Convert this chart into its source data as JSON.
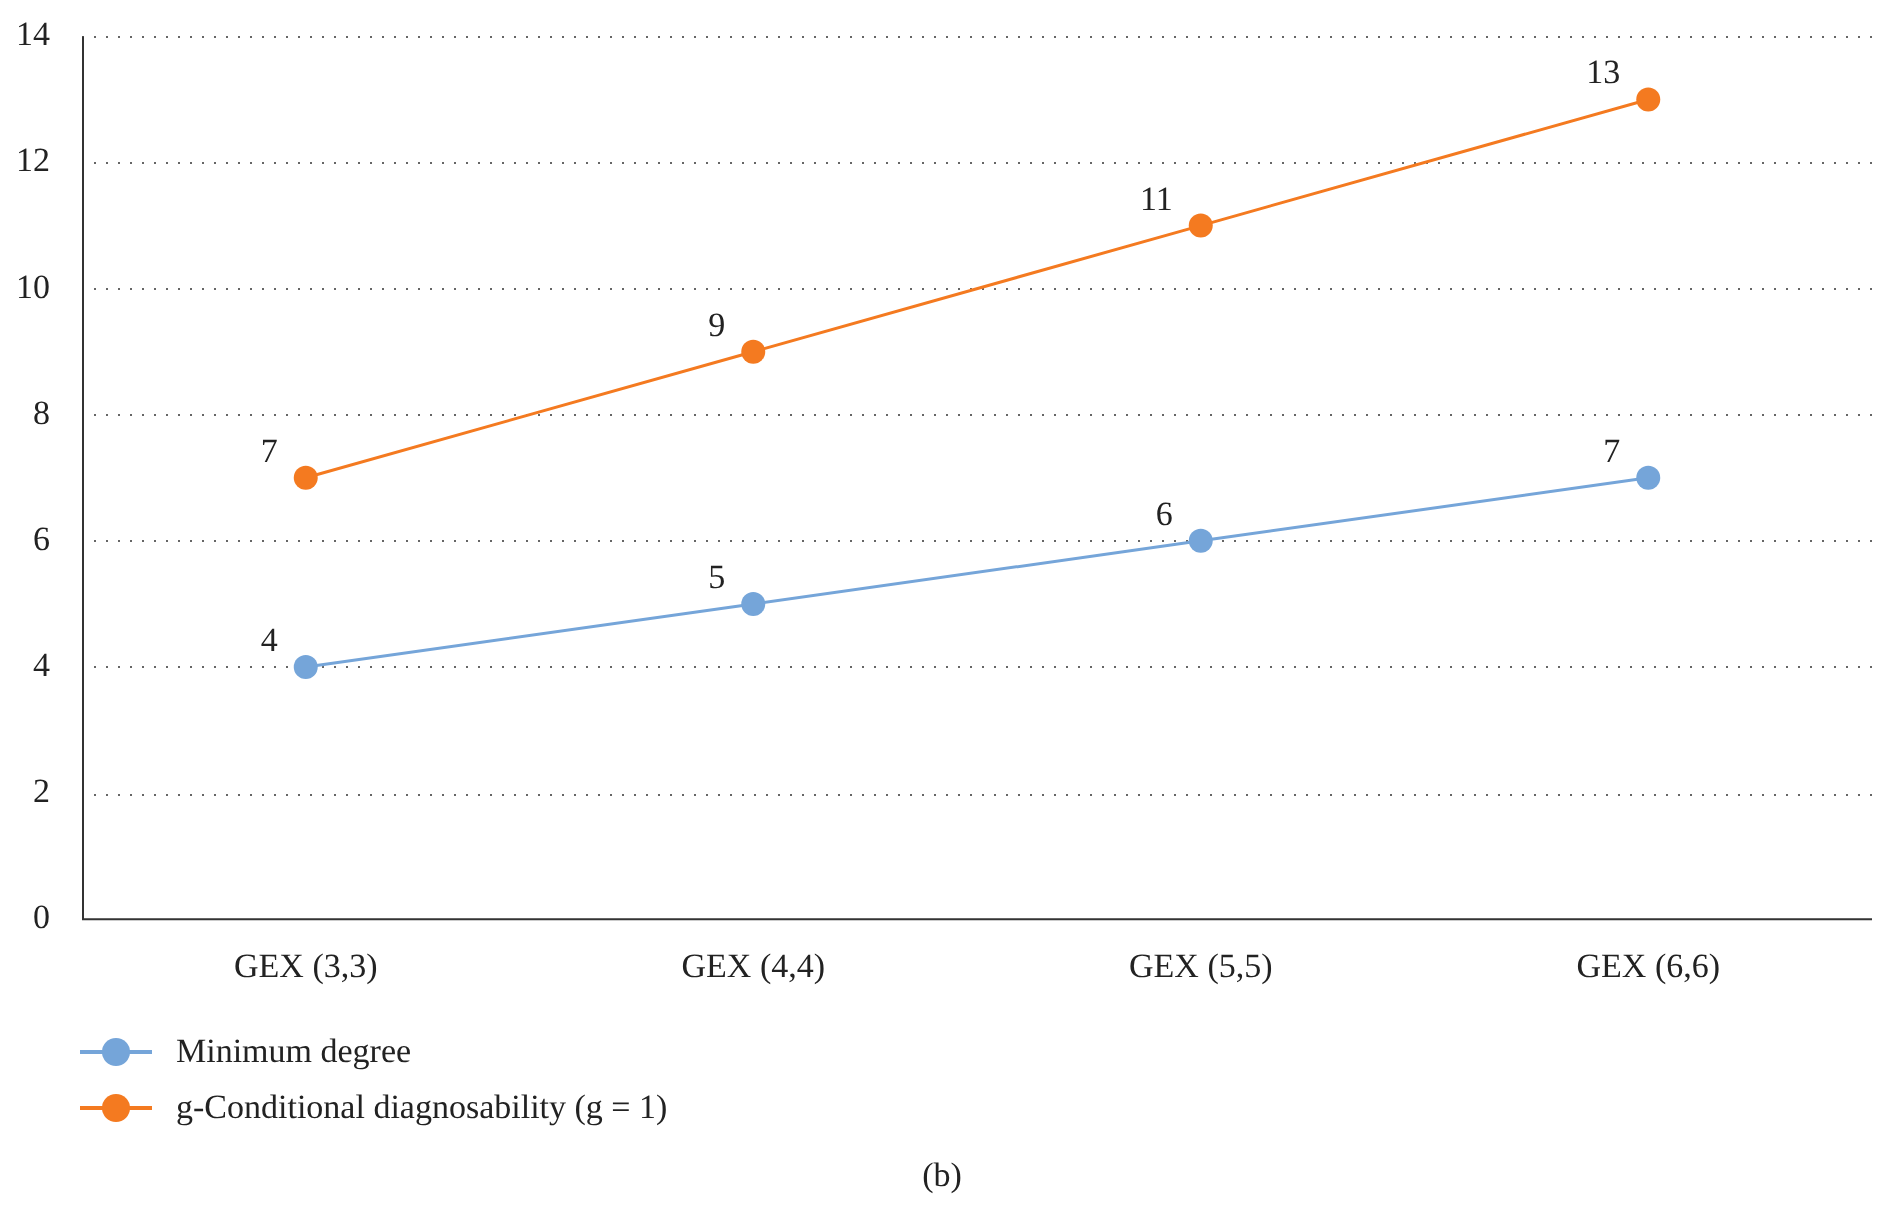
{
  "chart_data": {
    "type": "line",
    "categories": [
      "GEX (3,3)",
      "GEX (4,4)",
      "GEX (5,5)",
      "GEX (6,6)"
    ],
    "series": [
      {
        "name": "Minimum degree",
        "color": "#75a5d9",
        "values": [
          4,
          5,
          6,
          7
        ]
      },
      {
        "name": "g-Conditional diagnosability (g = 1)",
        "color": "#f47a20",
        "values": [
          7,
          9,
          11,
          13
        ]
      }
    ],
    "ylim": [
      0,
      14
    ],
    "yticks": [
      0,
      2,
      4,
      6,
      8,
      10,
      12,
      14
    ],
    "grid": "y",
    "legend": "bottom left",
    "marker": "circle",
    "line_style": "solid",
    "data_labels": true,
    "annotations": [
      "(b)"
    ]
  }
}
